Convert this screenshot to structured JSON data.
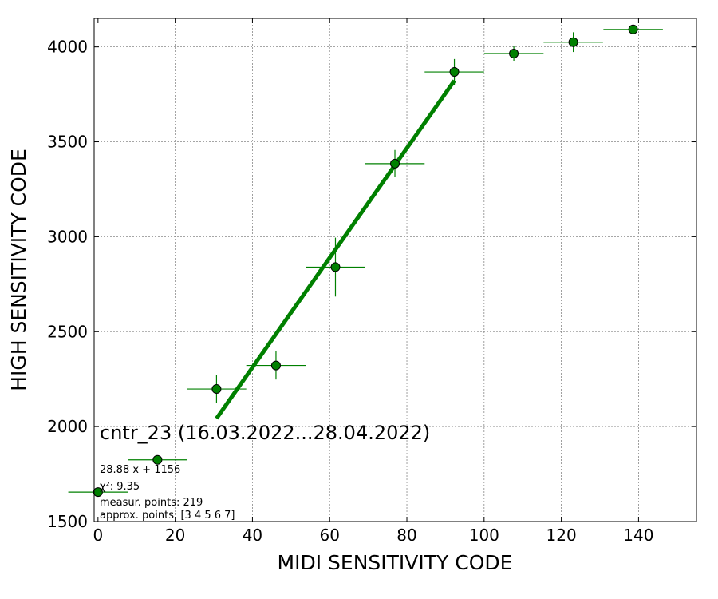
{
  "chart_data": {
    "type": "scatter",
    "title": "cntr_23 (16.03.2022...28.04.2022)",
    "xlabel": "MIDI SENSITIVITY CODE",
    "ylabel": "HIGH SENSITIVITY CODE",
    "xlim": [
      -1,
      155
    ],
    "ylim": [
      1500,
      4150
    ],
    "xticks": [
      0,
      20,
      40,
      60,
      80,
      100,
      120,
      140
    ],
    "yticks": [
      1500,
      2000,
      2500,
      3000,
      3500,
      4000
    ],
    "grid": true,
    "series": [
      {
        "x": [
          0,
          15.4,
          30.7,
          46.1,
          61.5,
          76.9,
          92.3,
          107.7,
          123.1,
          138.6
        ],
        "y": [
          1655,
          1825,
          2198,
          2322,
          2840,
          3385,
          3868,
          3965,
          4025,
          4092
        ],
        "xerr": [
          7.7,
          7.7,
          7.7,
          7.7,
          7.7,
          7.7,
          7.7,
          7.7,
          7.7,
          7.7
        ],
        "yerr": [
          12,
          14,
          72,
          74,
          155,
          72,
          68,
          42,
          52,
          12
        ],
        "color": "#008000"
      }
    ],
    "fit": {
      "x": [
        30.7,
        92.3
      ],
      "y": [
        2043,
        3822
      ],
      "color": "#008000"
    },
    "annotations": {
      "fit_equation": "28.88 x + 1156",
      "chi2": "χ²: 9.35",
      "measur_points": "measur. points: 219",
      "approx_points": "approx. points: [3 4 5 6 7]"
    }
  }
}
